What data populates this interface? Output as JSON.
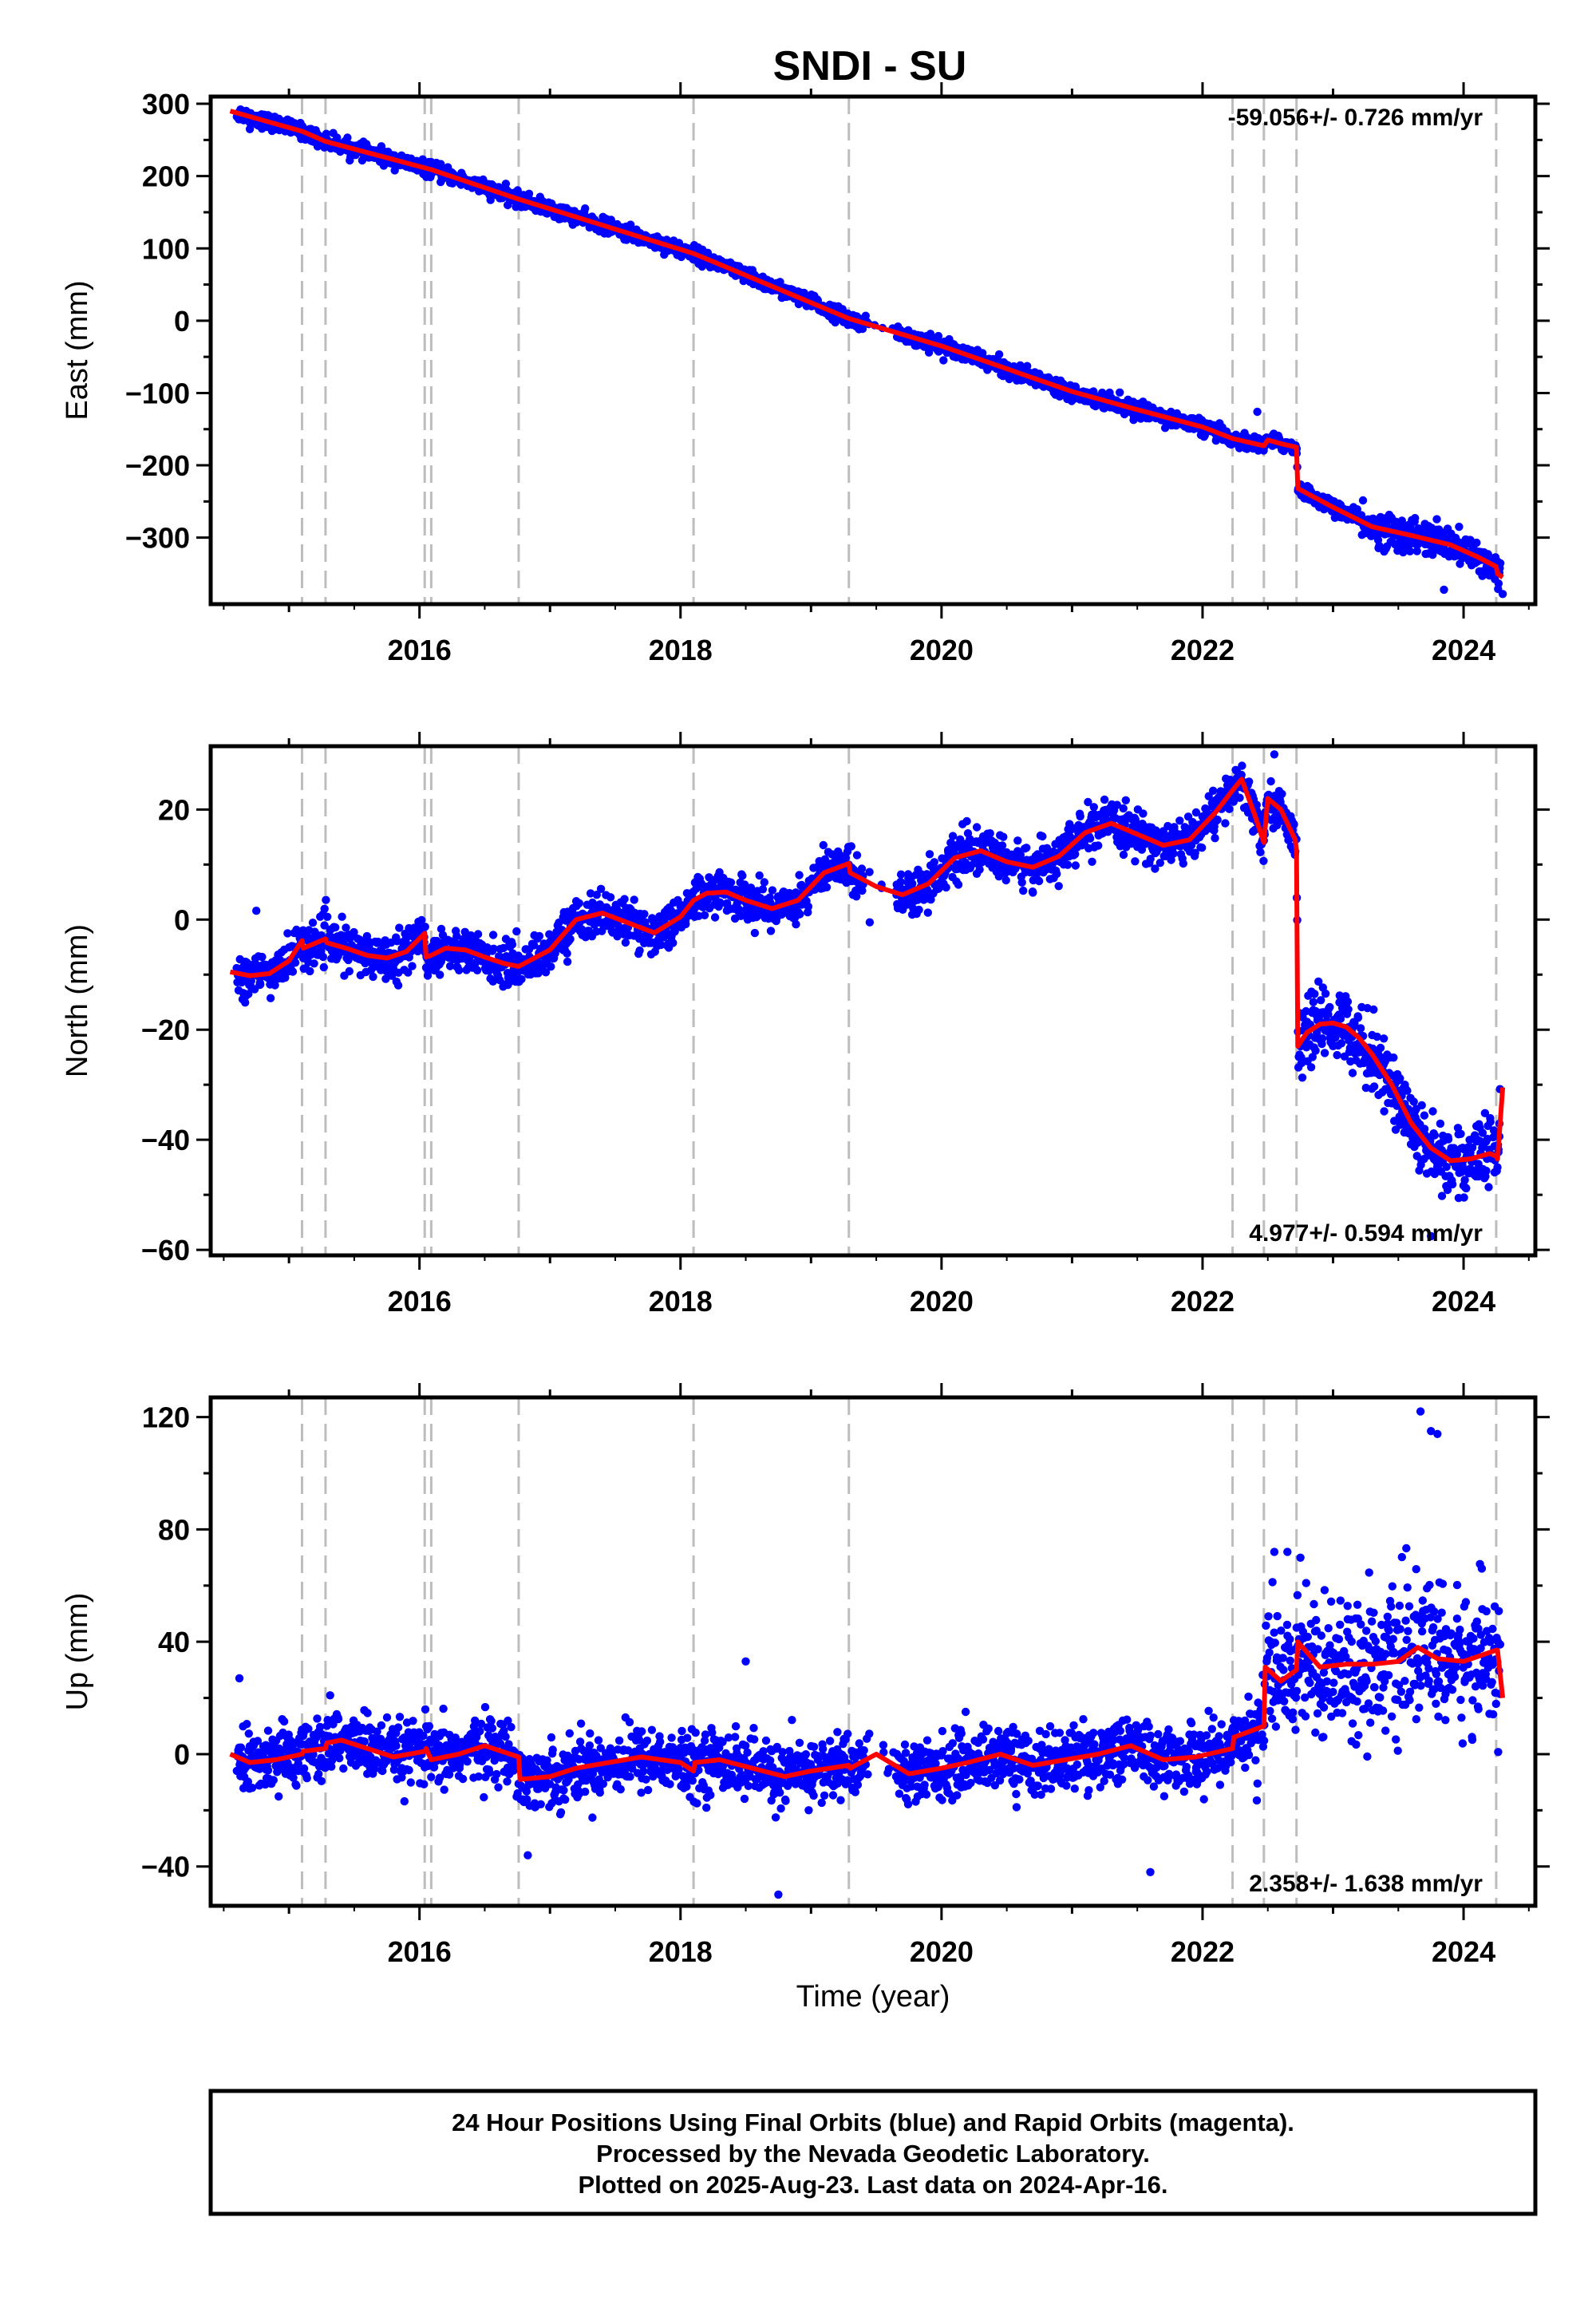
{
  "title": "SNDI - SU",
  "xlabel": "Time (year)",
  "footer": {
    "line1": "24 Hour Positions Using Final Orbits (blue) and Rapid Orbits (magenta).",
    "line2": "Processed by the Nevada Geodetic Laboratory.",
    "line3": "Plotted on 2025-Aug-23. Last data on 2024-Apr-16."
  },
  "colors": {
    "points": "#0000ff",
    "model": "#ff0000",
    "events": "#bdbdbd",
    "frame": "#000000"
  },
  "chart_data": [
    {
      "type": "scatter",
      "ylabel": "East (mm)",
      "rate": "-59.056+/- 0.726 mm/yr",
      "xlim": [
        2014.4,
        2024.55
      ],
      "ylim": [
        -392,
        310
      ],
      "xticks": [
        2016,
        2018,
        2020,
        2022,
        2024
      ],
      "yticks": [
        -300,
        -200,
        -100,
        0,
        100,
        200,
        300
      ],
      "ytick_labels": [
        "−300",
        "−200",
        "−100",
        "0",
        "100",
        "200",
        "300"
      ],
      "event_lines": [
        2015.1,
        2015.28,
        2016.04,
        2016.09,
        2016.76,
        2018.1,
        2019.29,
        2022.23,
        2022.47,
        2022.72,
        2024.25
      ],
      "model": {
        "x": [
          2014.55,
          2015.1,
          2015.28,
          2016.09,
          2016.76,
          2018.1,
          2019.29,
          2020.0,
          2021.0,
          2021.5,
          2022.0,
          2022.23,
          2022.47,
          2022.5,
          2022.6,
          2022.72,
          2022.73,
          2023.0,
          2023.3,
          2023.6,
          2023.9,
          2024.1,
          2024.25,
          2024.26,
          2024.3
        ],
        "y": [
          290,
          262,
          248,
          209,
          168,
          93,
          3,
          -35,
          -98,
          -123,
          -147,
          -163,
          -173,
          -165,
          -170,
          -175,
          -232,
          -258,
          -285,
          -297,
          -310,
          -326,
          -340,
          -350,
          -355
        ]
      },
      "scatter": {
        "n": 2600,
        "noise": 5,
        "noise_late": 12,
        "late_from": 2023.2,
        "gap": [
          2019.4,
          2019.65
        ],
        "outliers": [
          [
            2022.42,
            -126
          ],
          [
            2014.7,
            265
          ],
          [
            2023.85,
            -372
          ],
          [
            2024.3,
            -378
          ]
        ]
      }
    },
    {
      "type": "scatter",
      "ylabel": "North (mm)",
      "rate": "4.977+/- 0.594 mm/yr",
      "xlim": [
        2014.4,
        2024.55
      ],
      "ylim": [
        -61,
        31.5
      ],
      "xticks": [
        2016,
        2018,
        2020,
        2022,
        2024
      ],
      "yticks": [
        -60,
        -40,
        -20,
        0,
        20
      ],
      "ytick_labels": [
        "−60",
        "−40",
        "−20",
        "0",
        "20"
      ],
      "event_lines": [
        2015.1,
        2015.28,
        2016.04,
        2016.09,
        2016.76,
        2018.1,
        2019.29,
        2022.23,
        2022.47,
        2022.72,
        2024.25
      ],
      "model": {
        "x": [
          2014.55,
          2014.7,
          2014.85,
          2015.0,
          2015.1,
          2015.11,
          2015.28,
          2015.29,
          2015.45,
          2015.6,
          2015.75,
          2015.9,
          2016.04,
          2016.05,
          2016.09,
          2016.2,
          2016.35,
          2016.5,
          2016.65,
          2016.76,
          2017.0,
          2017.2,
          2017.4,
          2017.6,
          2017.8,
          2018.0,
          2018.1,
          2018.2,
          2018.35,
          2018.5,
          2018.7,
          2018.9,
          2019.1,
          2019.29,
          2019.3,
          2019.5,
          2019.7,
          2019.9,
          2020.1,
          2020.3,
          2020.5,
          2020.7,
          2020.9,
          2021.1,
          2021.3,
          2021.5,
          2021.7,
          2021.9,
          2022.1,
          2022.23,
          2022.3,
          2022.4,
          2022.47,
          2022.5,
          2022.6,
          2022.71,
          2022.72,
          2022.73,
          2022.8,
          2022.9,
          2023.0,
          2023.1,
          2023.2,
          2023.3,
          2023.45,
          2023.6,
          2023.75,
          2023.9,
          2024.05,
          2024.2,
          2024.25,
          2024.26,
          2024.3
        ],
        "y": [
          -9.5,
          -10.2,
          -9.8,
          -7.5,
          -3.8,
          -5.2,
          -3.5,
          -4.2,
          -5.3,
          -6.5,
          -7.0,
          -5.8,
          -2.5,
          -6.8,
          -6.5,
          -5.2,
          -5.5,
          -6.8,
          -8.0,
          -8.5,
          -5.5,
          0.0,
          1.2,
          -0.6,
          -2.4,
          0.5,
          3.5,
          4.8,
          5.0,
          3.5,
          2.0,
          3.5,
          8.5,
          10.2,
          8.5,
          6.0,
          4.5,
          6.5,
          11.2,
          12.5,
          10.5,
          9.5,
          11.5,
          15.8,
          17.5,
          15.5,
          13.5,
          14.5,
          19.5,
          23.5,
          25.5,
          19.0,
          14.0,
          22.0,
          20.0,
          14.5,
          12.5,
          -23.0,
          -20.5,
          -19.0,
          -18.8,
          -19.5,
          -21.5,
          -24.5,
          -30.0,
          -37.0,
          -41.5,
          -43.8,
          -43.5,
          -42.5,
          -43.0,
          -43.5,
          -30.5
        ]
      },
      "scatter": {
        "n": 2600,
        "noise": 1.9,
        "noise_late": 3.2,
        "late_from": 2022.72,
        "gap": [
          2019.4,
          2019.65
        ],
        "outliers": [
          [
            2014.75,
            1.6
          ],
          [
            2022.55,
            30
          ],
          [
            2023.55,
            -30
          ],
          [
            2023.75,
            -57.5
          ],
          [
            2019.45,
            -0.5
          ]
        ]
      }
    },
    {
      "type": "scatter",
      "ylabel": "Up (mm)",
      "rate": "2.358+/- 1.638 mm/yr",
      "xlim": [
        2014.4,
        2024.55
      ],
      "ylim": [
        -54,
        127
      ],
      "xticks": [
        2016,
        2018,
        2020,
        2022,
        2024
      ],
      "yticks": [
        -40,
        0,
        40,
        80,
        120
      ],
      "ytick_labels": [
        "−40",
        "0",
        "40",
        "80",
        "120"
      ],
      "event_lines": [
        2015.1,
        2015.28,
        2016.04,
        2016.09,
        2016.76,
        2018.1,
        2019.29,
        2022.23,
        2022.47,
        2022.72,
        2024.25
      ],
      "model": {
        "x": [
          2014.55,
          2014.7,
          2014.9,
          2015.1,
          2015.11,
          2015.28,
          2015.29,
          2015.4,
          2015.6,
          2015.8,
          2016.04,
          2016.05,
          2016.09,
          2016.3,
          2016.5,
          2016.76,
          2016.77,
          2017.0,
          2017.2,
          2017.45,
          2017.7,
          2018.0,
          2018.1,
          2018.11,
          2018.3,
          2018.55,
          2018.8,
          2019.0,
          2019.29,
          2019.3,
          2019.5,
          2019.75,
          2020.0,
          2020.2,
          2020.45,
          2020.7,
          2020.95,
          2021.2,
          2021.45,
          2021.7,
          2021.95,
          2022.23,
          2022.24,
          2022.47,
          2022.48,
          2022.6,
          2022.72,
          2022.73,
          2022.9,
          2023.1,
          2023.3,
          2023.5,
          2023.65,
          2023.8,
          2024.0,
          2024.25,
          2024.26,
          2024.3
        ],
        "y": [
          0,
          -3,
          -2,
          0,
          1,
          2,
          4,
          5,
          2,
          -1,
          1,
          2,
          -2,
          0,
          3,
          -1,
          -9,
          -8,
          -5,
          -3,
          -1,
          -3,
          -6,
          -3,
          -2,
          -5,
          -8,
          -6,
          -4,
          -5,
          0,
          -7,
          -5,
          -3,
          0,
          -4,
          -2,
          0,
          3,
          -2,
          -1,
          2,
          6,
          10,
          31,
          26,
          30,
          40,
          31,
          32,
          32,
          33,
          38,
          34,
          33,
          37,
          37,
          20
        ]
      },
      "scatter": {
        "n": 2600,
        "noise": 5.5,
        "noise_late": 12,
        "late_from": 2022.4,
        "gap": [
          2019.4,
          2019.65
        ],
        "outliers": [
          [
            2014.62,
            27
          ],
          [
            2016.83,
            -36
          ],
          [
            2018.75,
            -50
          ],
          [
            2023.67,
            122
          ],
          [
            2023.75,
            115
          ],
          [
            2023.8,
            114
          ],
          [
            2021.6,
            -42
          ],
          [
            2022.55,
            72
          ],
          [
            2022.65,
            72
          ],
          [
            2018.5,
            33
          ]
        ]
      }
    }
  ]
}
